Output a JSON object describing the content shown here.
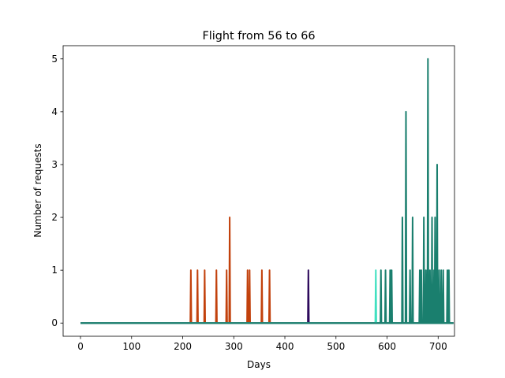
{
  "chart_data": {
    "type": "line",
    "title": "Flight from 56 to 66",
    "xlabel": "Days",
    "ylabel": "Number of requests",
    "xlim": [
      -34,
      732
    ],
    "ylim": [
      -0.25,
      5.25
    ],
    "xticks": [
      0,
      100,
      200,
      300,
      400,
      500,
      600,
      700
    ],
    "yticks": [
      0,
      1,
      2,
      3,
      4,
      5
    ],
    "grid": false,
    "legend": "none",
    "series": [
      {
        "color": "#c2410c",
        "days_start": 0,
        "days_end": 730,
        "spikes": [
          {
            "x": 216,
            "y": 1
          },
          {
            "x": 229,
            "y": 1
          },
          {
            "x": 243,
            "y": 1
          },
          {
            "x": 266,
            "y": 1
          },
          {
            "x": 286,
            "y": 1
          },
          {
            "x": 292,
            "y": 2
          },
          {
            "x": 327,
            "y": 1
          },
          {
            "x": 331,
            "y": 1
          },
          {
            "x": 355,
            "y": 1
          },
          {
            "x": 370,
            "y": 1
          }
        ]
      },
      {
        "color": "#2d0a5c",
        "days_start": 0,
        "days_end": 730,
        "spikes": [
          {
            "x": 446,
            "y": 1
          }
        ]
      },
      {
        "color": "#40e0c0",
        "days_start": 0,
        "days_end": 730,
        "spikes": [
          {
            "x": 578,
            "y": 1
          }
        ]
      },
      {
        "color": "#1a7f6e",
        "days_start": 0,
        "days_end": 730,
        "spikes": [
          {
            "x": 588,
            "y": 1
          },
          {
            "x": 597,
            "y": 1
          },
          {
            "x": 606,
            "y": 1
          },
          {
            "x": 609,
            "y": 1
          },
          {
            "x": 630,
            "y": 2
          },
          {
            "x": 637,
            "y": 4
          },
          {
            "x": 645,
            "y": 1
          },
          {
            "x": 650,
            "y": 2
          },
          {
            "x": 664,
            "y": 1
          },
          {
            "x": 667,
            "y": 1
          },
          {
            "x": 672,
            "y": 2
          },
          {
            "x": 676,
            "y": 1
          },
          {
            "x": 680,
            "y": 5
          },
          {
            "x": 684,
            "y": 1
          },
          {
            "x": 688,
            "y": 2
          },
          {
            "x": 692,
            "y": 1
          },
          {
            "x": 694,
            "y": 2
          },
          {
            "x": 698,
            "y": 3
          },
          {
            "x": 702,
            "y": 1
          },
          {
            "x": 706,
            "y": 1
          },
          {
            "x": 710,
            "y": 1
          },
          {
            "x": 718,
            "y": 1
          },
          {
            "x": 721,
            "y": 1
          }
        ]
      }
    ]
  }
}
